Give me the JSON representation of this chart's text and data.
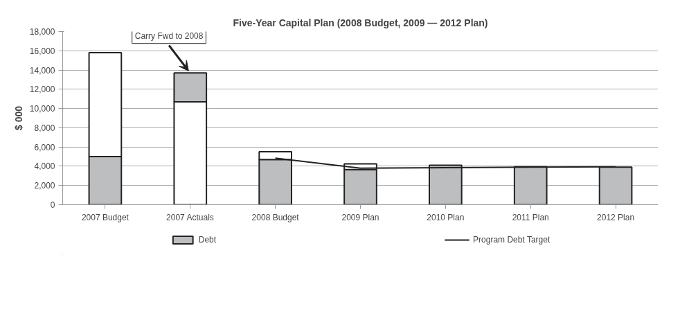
{
  "chart_data": {
    "type": "bar",
    "stacked": true,
    "title": "Five-Year Capital Plan (2008 Budget, 2009 — 2012 Plan)",
    "ylabel": "$ 000",
    "categories": [
      "2007 Budget",
      "2007 Actuals",
      "2008 Budget",
      "2009 Plan",
      "2010 Plan",
      "2011 Plan",
      "2012 Plan"
    ],
    "series": [
      {
        "name": "Debt",
        "color": "#bdbec0",
        "values": [
          5000,
          null,
          4700,
          3650,
          4100,
          3950,
          3900
        ]
      },
      {
        "color": "#ffffff",
        "values": [
          10800,
          10700,
          800,
          600,
          null,
          null,
          null
        ]
      },
      {
        "color": "#bdbec0",
        "values": [
          null,
          3000,
          null,
          null,
          null,
          null,
          null
        ]
      },
      {
        "name": "Program Debt Target",
        "type": "line",
        "color": "#222222",
        "values": [
          null,
          null,
          4850,
          3800,
          3850,
          3900,
          3950
        ]
      }
    ],
    "ylim": [
      0,
      18000
    ],
    "yticks": [
      {
        "value": 0,
        "label": "0"
      },
      {
        "value": 2000,
        "label": "2,000"
      },
      {
        "value": 4000,
        "label": "4,000"
      },
      {
        "value": 6000,
        "label": "6,000"
      },
      {
        "value": 8000,
        "label": "8,000"
      },
      {
        "value": 10000,
        "label": "10,000"
      },
      {
        "value": 12000,
        "label": "12,000"
      },
      {
        "value": 14000,
        "label": "14,000"
      },
      {
        "value": 16000,
        "label": "16,000"
      },
      {
        "value": 18000,
        "label": "18,000"
      }
    ],
    "grid": "y",
    "legend": "bottom",
    "annotations": [
      {
        "text": "Carry Fwd to 2008",
        "x": "2007 Actuals",
        "y": 13700
      }
    ]
  }
}
